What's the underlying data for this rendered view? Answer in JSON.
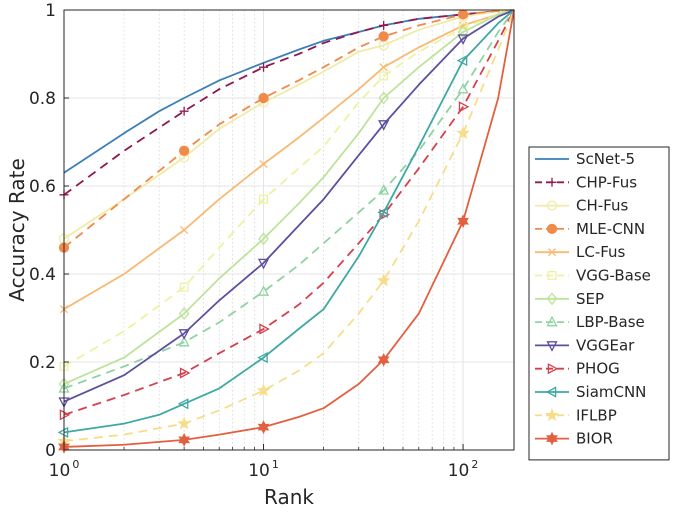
{
  "chart_data": {
    "type": "line",
    "title": "",
    "xlabel": "Rank",
    "ylabel": "Accuracy Rate",
    "xscale": "log",
    "xlim": [
      1,
      180
    ],
    "ylim": [
      0,
      1
    ],
    "xticks": [
      {
        "base": "10",
        "exp": "0",
        "value": 1
      },
      {
        "base": "10",
        "exp": "1",
        "value": 10
      },
      {
        "base": "10",
        "exp": "2",
        "value": 100
      }
    ],
    "yticks": [
      "0",
      "0.2",
      "0.4",
      "0.6",
      "0.8",
      "1"
    ],
    "ytick_values": [
      0,
      0.2,
      0.4,
      0.6,
      0.8,
      1
    ],
    "grid": true,
    "legend_position": "right",
    "series": [
      {
        "name": "ScNet-5",
        "color": "#3a7fb8",
        "dash": "solid",
        "marker": "none",
        "x": [
          1,
          2,
          3,
          4,
          6,
          10,
          15,
          20,
          30,
          40,
          60,
          100,
          150,
          180
        ],
        "y": [
          0.63,
          0.72,
          0.77,
          0.8,
          0.84,
          0.88,
          0.91,
          0.93,
          0.95,
          0.965,
          0.98,
          0.99,
          0.997,
          1.0
        ]
      },
      {
        "name": "CHP-Fus",
        "color": "#8e1a50",
        "dash": "dashed",
        "marker": "plus",
        "x": [
          1,
          2,
          4,
          6,
          10,
          15,
          20,
          30,
          40,
          60,
          100,
          150,
          180
        ],
        "y": [
          0.58,
          0.68,
          0.77,
          0.82,
          0.87,
          0.9,
          0.925,
          0.95,
          0.965,
          0.98,
          0.99,
          0.997,
          1.0
        ],
        "markers_x": [
          1,
          4,
          10,
          40,
          100
        ],
        "markers_y": [
          0.58,
          0.77,
          0.87,
          0.965,
          0.99
        ]
      },
      {
        "name": "CH-Fus",
        "color": "#f2eaa6",
        "dash": "solid",
        "marker": "circle",
        "x": [
          1,
          2,
          4,
          6,
          10,
          15,
          20,
          30,
          40,
          60,
          100,
          150,
          180
        ],
        "y": [
          0.48,
          0.57,
          0.665,
          0.73,
          0.79,
          0.83,
          0.86,
          0.905,
          0.92,
          0.955,
          0.985,
          0.997,
          1.0
        ],
        "markers_x": [
          1,
          4,
          10,
          40,
          100
        ],
        "markers_y": [
          0.48,
          0.665,
          0.79,
          0.92,
          0.985
        ]
      },
      {
        "name": "MLE-CNN",
        "color": "#f08a4b",
        "dash": "dashed",
        "marker": "circle-filled",
        "x": [
          1,
          2,
          4,
          6,
          10,
          15,
          20,
          30,
          40,
          60,
          100,
          150,
          180
        ],
        "y": [
          0.46,
          0.57,
          0.68,
          0.74,
          0.8,
          0.84,
          0.87,
          0.915,
          0.94,
          0.965,
          0.99,
          0.998,
          1.0
        ],
        "markers_x": [
          1,
          4,
          10,
          40,
          100
        ],
        "markers_y": [
          0.46,
          0.68,
          0.8,
          0.94,
          0.99
        ]
      },
      {
        "name": "LC-Fus",
        "color": "#f8b972",
        "dash": "solid",
        "marker": "x",
        "x": [
          1,
          2,
          4,
          6,
          10,
          15,
          20,
          30,
          40,
          60,
          100,
          150,
          180
        ],
        "y": [
          0.32,
          0.4,
          0.5,
          0.57,
          0.65,
          0.71,
          0.755,
          0.82,
          0.87,
          0.915,
          0.965,
          0.99,
          1.0
        ],
        "markers_x": [
          1,
          4,
          10,
          40,
          100
        ],
        "markers_y": [
          0.32,
          0.5,
          0.65,
          0.87,
          0.965
        ]
      },
      {
        "name": "VGG-Base",
        "color": "#eef2a0",
        "dash": "dashed",
        "marker": "square",
        "x": [
          1,
          2,
          4,
          6,
          10,
          15,
          20,
          30,
          40,
          60,
          100,
          150,
          180
        ],
        "y": [
          0.19,
          0.27,
          0.37,
          0.46,
          0.57,
          0.64,
          0.69,
          0.79,
          0.85,
          0.905,
          0.96,
          0.99,
          1.0
        ],
        "markers_x": [
          1,
          4,
          10,
          40,
          100
        ],
        "markers_y": [
          0.19,
          0.37,
          0.57,
          0.85,
          0.96
        ]
      },
      {
        "name": "SEP",
        "color": "#bde39a",
        "dash": "solid",
        "marker": "diamond",
        "x": [
          1,
          2,
          4,
          6,
          10,
          15,
          20,
          30,
          40,
          60,
          100,
          150,
          180
        ],
        "y": [
          0.15,
          0.21,
          0.31,
          0.39,
          0.48,
          0.56,
          0.62,
          0.72,
          0.8,
          0.87,
          0.95,
          0.99,
          1.0
        ],
        "markers_x": [
          1,
          4,
          10,
          40,
          100
        ],
        "markers_y": [
          0.15,
          0.31,
          0.48,
          0.8,
          0.95
        ]
      },
      {
        "name": "LBP-Base",
        "color": "#8fd3a2",
        "dash": "dashed",
        "marker": "triangle-up",
        "x": [
          1,
          2,
          4,
          6,
          10,
          15,
          20,
          30,
          40,
          60,
          100,
          150,
          180
        ],
        "y": [
          0.14,
          0.19,
          0.245,
          0.29,
          0.36,
          0.42,
          0.47,
          0.54,
          0.59,
          0.68,
          0.82,
          0.95,
          1.0
        ],
        "markers_x": [
          1,
          4,
          10,
          40,
          100
        ],
        "markers_y": [
          0.14,
          0.245,
          0.36,
          0.59,
          0.82
        ]
      },
      {
        "name": "VGGEar",
        "color": "#5b4fa0",
        "dash": "solid",
        "marker": "triangle-down",
        "x": [
          1,
          2,
          4,
          6,
          10,
          15,
          20,
          30,
          40,
          60,
          100,
          150,
          180
        ],
        "y": [
          0.11,
          0.17,
          0.265,
          0.34,
          0.425,
          0.51,
          0.57,
          0.67,
          0.74,
          0.83,
          0.935,
          0.985,
          1.0
        ],
        "markers_x": [
          1,
          4,
          10,
          40,
          100
        ],
        "markers_y": [
          0.11,
          0.265,
          0.425,
          0.74,
          0.935
        ]
      },
      {
        "name": "PHOG",
        "color": "#d6404e",
        "dash": "dashed",
        "marker": "triangle-right",
        "x": [
          1,
          2,
          4,
          6,
          10,
          15,
          20,
          30,
          40,
          60,
          100,
          150,
          180
        ],
        "y": [
          0.08,
          0.125,
          0.175,
          0.22,
          0.275,
          0.33,
          0.38,
          0.47,
          0.535,
          0.64,
          0.78,
          0.93,
          1.0
        ],
        "markers_x": [
          1,
          4,
          10,
          40,
          100
        ],
        "markers_y": [
          0.08,
          0.175,
          0.275,
          0.535,
          0.78
        ]
      },
      {
        "name": "SiamCNN",
        "color": "#3fa8a4",
        "dash": "solid",
        "marker": "triangle-left",
        "x": [
          1,
          2,
          3,
          4,
          6,
          10,
          15,
          20,
          30,
          40,
          60,
          100,
          150,
          180
        ],
        "y": [
          0.04,
          0.06,
          0.08,
          0.105,
          0.14,
          0.21,
          0.275,
          0.32,
          0.44,
          0.54,
          0.69,
          0.885,
          0.97,
          1.0
        ],
        "markers_x": [
          1,
          4,
          10,
          40,
          100
        ],
        "markers_y": [
          0.04,
          0.105,
          0.21,
          0.54,
          0.885
        ]
      },
      {
        "name": "IFLBP",
        "color": "#f7dd8a",
        "dash": "dashed",
        "marker": "star",
        "x": [
          1,
          2,
          4,
          6,
          10,
          15,
          20,
          30,
          40,
          60,
          100,
          150,
          180
        ],
        "y": [
          0.02,
          0.035,
          0.06,
          0.09,
          0.135,
          0.18,
          0.22,
          0.31,
          0.385,
          0.52,
          0.72,
          0.91,
          1.0
        ],
        "markers_x": [
          1,
          4,
          10,
          40,
          100
        ],
        "markers_y": [
          0.02,
          0.06,
          0.135,
          0.385,
          0.72
        ]
      },
      {
        "name": "BIOR",
        "color": "#e2603f",
        "dash": "solid",
        "marker": "hexagram",
        "x": [
          1,
          2,
          4,
          6,
          10,
          15,
          20,
          30,
          40,
          60,
          100,
          150,
          180
        ],
        "y": [
          0.007,
          0.012,
          0.023,
          0.035,
          0.052,
          0.075,
          0.095,
          0.15,
          0.205,
          0.31,
          0.52,
          0.8,
          1.0
        ],
        "markers_x": [
          1,
          4,
          10,
          40,
          100
        ],
        "markers_y": [
          0.007,
          0.023,
          0.052,
          0.205,
          0.52
        ]
      }
    ]
  }
}
